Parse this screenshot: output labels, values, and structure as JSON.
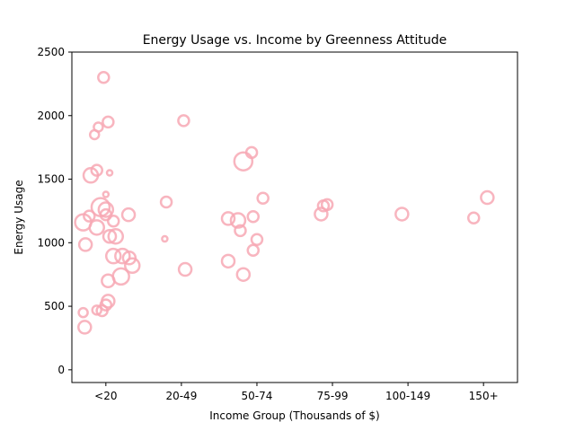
{
  "chart_data": {
    "type": "scatter",
    "title": "Energy Usage vs. Income by Greenness Attitude",
    "xlabel": "Income Group (Thousands of $)",
    "ylabel": "Energy Usage",
    "categories": [
      "<20",
      "20-49",
      "50-74",
      "75-99",
      "100-149",
      "150+"
    ],
    "xlim": [
      -0.45,
      5.45
    ],
    "ylim": [
      -100,
      2500
    ],
    "yticks": [
      0,
      500,
      1000,
      1500,
      2000,
      2500
    ],
    "marker_color": "#f7a8b4",
    "grid": false,
    "legend": "none",
    "points": [
      {
        "x": -0.03,
        "y": 2300,
        "size": 6
      },
      {
        "x": 1.03,
        "y": 1960,
        "size": 6
      },
      {
        "x": 0.03,
        "y": 1950,
        "size": 6
      },
      {
        "x": -0.1,
        "y": 1910,
        "size": 5
      },
      {
        "x": -0.15,
        "y": 1850,
        "size": 5
      },
      {
        "x": 0.8,
        "y": 1320,
        "size": 6
      },
      {
        "x": 1.93,
        "y": 1710,
        "size": 6
      },
      {
        "x": 1.82,
        "y": 1640,
        "size": 10
      },
      {
        "x": -0.12,
        "y": 1570,
        "size": 6
      },
      {
        "x": 0.05,
        "y": 1550,
        "size": 3
      },
      {
        "x": -0.2,
        "y": 1530,
        "size": 8
      },
      {
        "x": 0.0,
        "y": 1380,
        "size": 3
      },
      {
        "x": 2.08,
        "y": 1350,
        "size": 6
      },
      {
        "x": -0.07,
        "y": 1280,
        "size": 10
      },
      {
        "x": 0.0,
        "y": 1260,
        "size": 8
      },
      {
        "x": 0.0,
        "y": 1220,
        "size": 6
      },
      {
        "x": -0.22,
        "y": 1210,
        "size": 6
      },
      {
        "x": 0.3,
        "y": 1220,
        "size": 7
      },
      {
        "x": -0.3,
        "y": 1160,
        "size": 9
      },
      {
        "x": 0.1,
        "y": 1170,
        "size": 6
      },
      {
        "x": -0.12,
        "y": 1120,
        "size": 8
      },
      {
        "x": 0.05,
        "y": 1050,
        "size": 7
      },
      {
        "x": 0.13,
        "y": 1050,
        "size": 8
      },
      {
        "x": 0.78,
        "y": 1030,
        "size": 3
      },
      {
        "x": -0.27,
        "y": 985,
        "size": 7
      },
      {
        "x": 0.1,
        "y": 895,
        "size": 8
      },
      {
        "x": 0.22,
        "y": 895,
        "size": 8
      },
      {
        "x": 0.31,
        "y": 880,
        "size": 7
      },
      {
        "x": 0.35,
        "y": 820,
        "size": 8
      },
      {
        "x": 1.05,
        "y": 790,
        "size": 7
      },
      {
        "x": 0.2,
        "y": 735,
        "size": 9
      },
      {
        "x": 0.03,
        "y": 700,
        "size": 7
      },
      {
        "x": 0.03,
        "y": 540,
        "size": 7
      },
      {
        "x": 0.0,
        "y": 510,
        "size": 6
      },
      {
        "x": -0.05,
        "y": 465,
        "size": 6
      },
      {
        "x": -0.12,
        "y": 470,
        "size": 5
      },
      {
        "x": -0.3,
        "y": 450,
        "size": 5
      },
      {
        "x": -0.28,
        "y": 335,
        "size": 7
      },
      {
        "x": 1.62,
        "y": 1190,
        "size": 7
      },
      {
        "x": 1.75,
        "y": 1175,
        "size": 8
      },
      {
        "x": 1.78,
        "y": 1095,
        "size": 6
      },
      {
        "x": 1.95,
        "y": 1205,
        "size": 6
      },
      {
        "x": 2.0,
        "y": 1025,
        "size": 6
      },
      {
        "x": 1.95,
        "y": 940,
        "size": 6
      },
      {
        "x": 1.62,
        "y": 855,
        "size": 7
      },
      {
        "x": 1.82,
        "y": 750,
        "size": 7
      },
      {
        "x": 2.88,
        "y": 1290,
        "size": 6
      },
      {
        "x": 2.93,
        "y": 1300,
        "size": 6
      },
      {
        "x": 2.85,
        "y": 1225,
        "size": 7
      },
      {
        "x": 3.92,
        "y": 1225,
        "size": 7
      },
      {
        "x": 4.87,
        "y": 1195,
        "size": 6
      },
      {
        "x": 5.05,
        "y": 1355,
        "size": 7
      }
    ]
  }
}
